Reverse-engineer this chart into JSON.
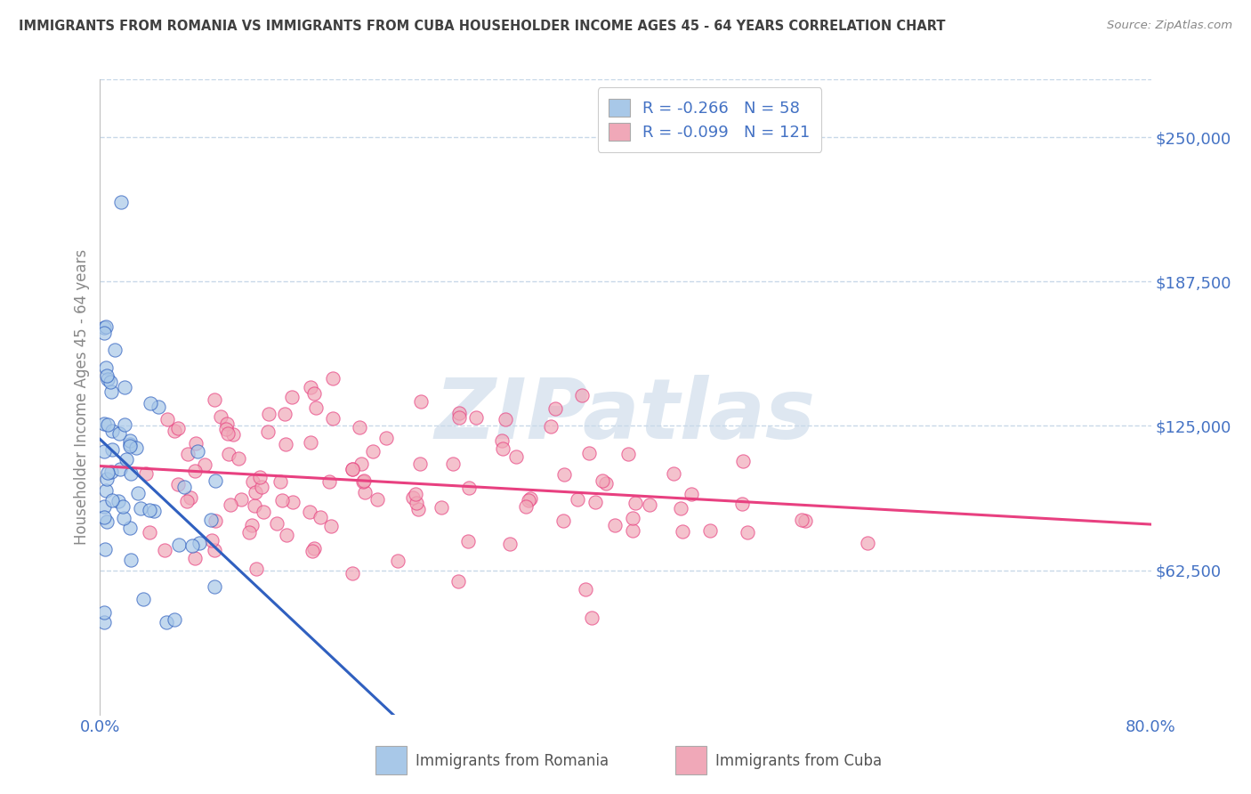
{
  "title": "IMMIGRANTS FROM ROMANIA VS IMMIGRANTS FROM CUBA HOUSEHOLDER INCOME AGES 45 - 64 YEARS CORRELATION CHART",
  "source": "Source: ZipAtlas.com",
  "ylabel": "Householder Income Ages 45 - 64 years",
  "romania_R": -0.266,
  "romania_N": 58,
  "cuba_R": -0.099,
  "cuba_N": 121,
  "romania_color": "#a8c8e8",
  "cuba_color": "#f0a8b8",
  "romania_line_color": "#3060c0",
  "cuba_line_color": "#e84080",
  "trend_line_color": "#c8d8e0",
  "title_color": "#404040",
  "legend_label_color": "#4472c4",
  "tick_color": "#4472c4",
  "grid_color": "#c8d8e8",
  "watermark": "ZIPatlas",
  "watermark_color": "#c8d8e8",
  "xlim": [
    0.0,
    0.8
  ],
  "ylim": [
    0,
    275000
  ],
  "ytick_vals": [
    0,
    62500,
    125000,
    187500,
    250000
  ],
  "ytick_labels": [
    "",
    "$62,500",
    "$125,000",
    "$187,500",
    "$250,000"
  ],
  "xtick_vals": [
    0.0,
    0.2,
    0.4,
    0.6,
    0.8
  ],
  "xtick_labels": [
    "0.0%",
    "",
    "",
    "",
    "80.0%"
  ],
  "legend_romania": "R = -0.266   N = 58",
  "legend_cuba": "R = -0.099   N = 121",
  "bottom_legend_romania": "Immigrants from Romania",
  "bottom_legend_cuba": "Immigrants from Cuba",
  "romania_seed": 42,
  "cuba_seed": 99
}
